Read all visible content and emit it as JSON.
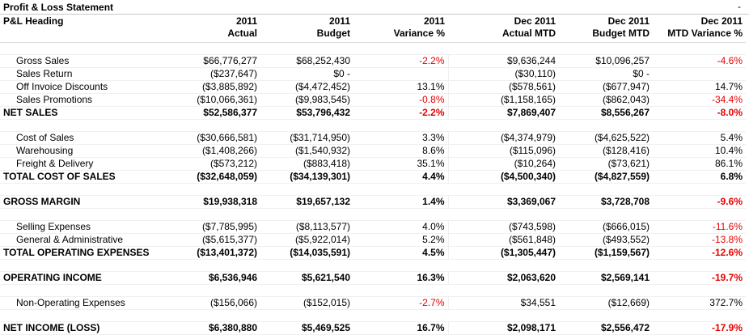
{
  "window": {
    "title": "Profit & Loss Statement",
    "minimize": "-"
  },
  "columns": [
    {
      "l1": "P&L Heading",
      "l2": ""
    },
    {
      "l1": "2011",
      "l2": "Actual"
    },
    {
      "l1": "2011",
      "l2": "Budget"
    },
    {
      "l1": "2011",
      "l2": "Variance %"
    },
    {
      "l1": "Dec 2011",
      "l2": "Actual MTD"
    },
    {
      "l1": "Dec 2011",
      "l2": "Budget MTD"
    },
    {
      "l1": "Dec 2011",
      "l2": "MTD Variance %"
    }
  ],
  "rows": [
    {
      "type": "blank"
    },
    {
      "type": "item",
      "label": "Gross Sales",
      "vals": [
        "$66,776,277",
        "$68,252,430",
        "-2.2%",
        "$9,636,244",
        "$10,096,257",
        "-4.6%"
      ],
      "red": [
        2,
        5
      ]
    },
    {
      "type": "item",
      "label": "Sales Return",
      "vals": [
        "($237,647)",
        "$0 -",
        "",
        "($30,110)",
        "$0 -",
        ""
      ],
      "red": []
    },
    {
      "type": "item",
      "label": "Off Invoice Discounts",
      "vals": [
        "($3,885,892)",
        "($4,472,452)",
        "13.1%",
        "($578,561)",
        "($677,947)",
        "14.7%"
      ],
      "red": []
    },
    {
      "type": "item",
      "label": "Sales Promotions",
      "vals": [
        "($10,066,361)",
        "($9,983,545)",
        "-0.8%",
        "($1,158,165)",
        "($862,043)",
        "-34.4%"
      ],
      "red": [
        2,
        5
      ]
    },
    {
      "type": "total",
      "label": "NET SALES",
      "vals": [
        "$52,586,377",
        "$53,796,432",
        "-2.2%",
        "$7,869,407",
        "$8,556,267",
        "-8.0%"
      ],
      "red": [
        2,
        5
      ]
    },
    {
      "type": "blank"
    },
    {
      "type": "item",
      "label": "Cost of Sales",
      "vals": [
        "($30,666,581)",
        "($31,714,950)",
        "3.3%",
        "($4,374,979)",
        "($4,625,522)",
        "5.4%"
      ],
      "red": []
    },
    {
      "type": "item",
      "label": "Warehousing",
      "vals": [
        "($1,408,266)",
        "($1,540,932)",
        "8.6%",
        "($115,096)",
        "($128,416)",
        "10.4%"
      ],
      "red": []
    },
    {
      "type": "item",
      "label": "Freight & Delivery",
      "vals": [
        "($573,212)",
        "($883,418)",
        "35.1%",
        "($10,264)",
        "($73,621)",
        "86.1%"
      ],
      "red": []
    },
    {
      "type": "total",
      "label": "TOTAL COST OF SALES",
      "vals": [
        "($32,648,059)",
        "($34,139,301)",
        "4.4%",
        "($4,500,340)",
        "($4,827,559)",
        "6.8%"
      ],
      "red": []
    },
    {
      "type": "blank"
    },
    {
      "type": "total",
      "label": "GROSS MARGIN",
      "vals": [
        "$19,938,318",
        "$19,657,132",
        "1.4%",
        "$3,369,067",
        "$3,728,708",
        "-9.6%"
      ],
      "red": [
        5
      ]
    },
    {
      "type": "blank"
    },
    {
      "type": "item",
      "label": "Selling Expenses",
      "vals": [
        "($7,785,995)",
        "($8,113,577)",
        "4.0%",
        "($743,598)",
        "($666,015)",
        "-11.6%"
      ],
      "red": [
        5
      ]
    },
    {
      "type": "item",
      "label": "General & Administrative",
      "vals": [
        "($5,615,377)",
        "($5,922,014)",
        "5.2%",
        "($561,848)",
        "($493,552)",
        "-13.8%"
      ],
      "red": [
        5
      ]
    },
    {
      "type": "total",
      "label": "TOTAL  OPERATING EXPENSES",
      "vals": [
        "($13,401,372)",
        "($14,035,591)",
        "4.5%",
        "($1,305,447)",
        "($1,159,567)",
        "-12.6%"
      ],
      "red": [
        5
      ]
    },
    {
      "type": "blank"
    },
    {
      "type": "total",
      "label": "OPERATING INCOME",
      "vals": [
        "$6,536,946",
        "$5,621,540",
        "16.3%",
        "$2,063,620",
        "$2,569,141",
        "-19.7%"
      ],
      "red": [
        5
      ]
    },
    {
      "type": "blank"
    },
    {
      "type": "item",
      "label": "Non-Operating Expenses",
      "vals": [
        "($156,066)",
        "($152,015)",
        "-2.7%",
        "$34,551",
        "($12,669)",
        "372.7%"
      ],
      "red": [
        2
      ]
    },
    {
      "type": "blank"
    },
    {
      "type": "total",
      "label": "NET INCOME (LOSS)",
      "vals": [
        "$6,380,880",
        "$5,469,525",
        "16.7%",
        "$2,098,171",
        "$2,556,472",
        "-17.9%"
      ],
      "red": [
        5
      ]
    }
  ],
  "colors": {
    "negative": "#e60000",
    "text": "#000000",
    "divider": "#c8c8c8"
  }
}
